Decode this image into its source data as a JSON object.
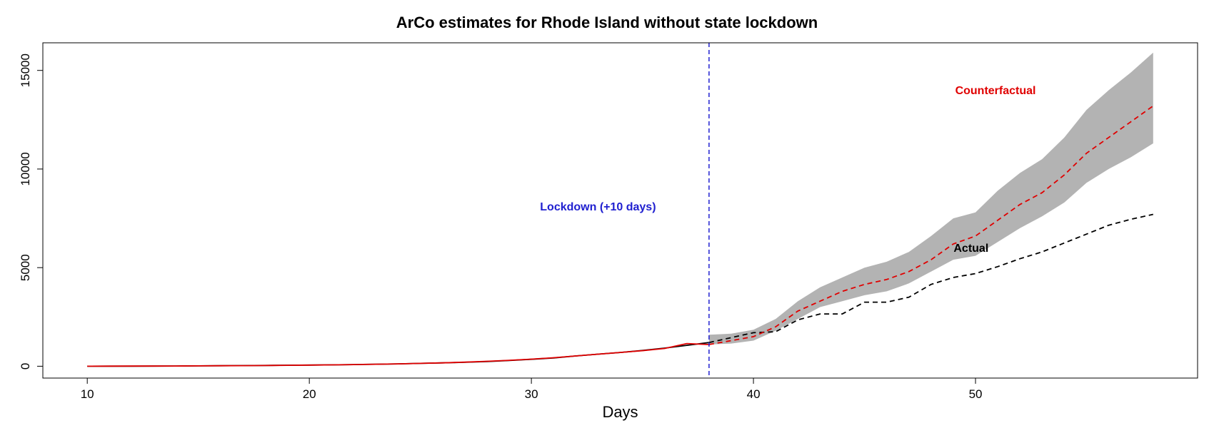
{
  "chart_data": {
    "type": "line",
    "title": "ArCo estimates for Rhode Island without state lockdown",
    "xlabel": "Days",
    "ylabel": "",
    "xlim": [
      8,
      60
    ],
    "ylim": [
      -600,
      16400
    ],
    "x_ticks": [
      10,
      20,
      30,
      40,
      50
    ],
    "y_ticks": [
      0,
      5000,
      10000,
      15000
    ],
    "grid": false,
    "legend": "none",
    "colors": {
      "actual": "#000000",
      "counterfactual": "#e00000",
      "band": "#b3b3b3",
      "lockdown": "#2020d0"
    },
    "series": [
      {
        "key": "actual_pre",
        "style": "solid",
        "x": [
          10,
          11,
          12,
          13,
          14,
          15,
          16,
          17,
          18,
          19,
          20,
          21,
          22,
          23,
          24,
          25,
          26,
          27,
          28,
          29,
          30,
          31,
          32,
          33,
          34,
          35,
          36,
          37,
          38
        ],
        "values": [
          2,
          3,
          5,
          8,
          12,
          18,
          25,
          32,
          40,
          50,
          60,
          70,
          85,
          100,
          120,
          145,
          170,
          200,
          240,
          290,
          350,
          420,
          520,
          610,
          700,
          800,
          920,
          1060,
          1200
        ]
      },
      {
        "key": "counterfactual_pre",
        "style": "solid",
        "x": [
          10,
          11,
          12,
          13,
          14,
          15,
          16,
          17,
          18,
          19,
          20,
          21,
          22,
          23,
          24,
          25,
          26,
          27,
          28,
          29,
          30,
          31,
          32,
          33,
          34,
          35,
          36,
          37,
          38
        ],
        "values": [
          2,
          4,
          6,
          8,
          12,
          17,
          24,
          30,
          38,
          48,
          58,
          70,
          85,
          100,
          120,
          145,
          170,
          205,
          250,
          300,
          360,
          430,
          520,
          610,
          700,
          790,
          900,
          1150,
          1100
        ]
      },
      {
        "key": "actual_post",
        "style": "dashed",
        "x": [
          38,
          39,
          40,
          41,
          42,
          43,
          44,
          45,
          46,
          47,
          48,
          49,
          50,
          51,
          52,
          53,
          54,
          55,
          56,
          57,
          58
        ],
        "values": [
          1200,
          1450,
          1700,
          1750,
          2350,
          2650,
          2650,
          3250,
          3250,
          3500,
          4150,
          4500,
          4700,
          5050,
          5450,
          5800,
          6250,
          6700,
          7150,
          7450,
          7700
        ]
      },
      {
        "key": "counterfactual_post",
        "style": "dashed",
        "x": [
          38,
          39,
          40,
          41,
          42,
          43,
          44,
          45,
          46,
          47,
          48,
          49,
          50,
          51,
          52,
          53,
          54,
          55,
          56,
          57,
          58
        ],
        "values": [
          1100,
          1300,
          1500,
          2000,
          2800,
          3300,
          3800,
          4150,
          4400,
          4800,
          5400,
          6200,
          6600,
          7400,
          8200,
          8800,
          9700,
          10800,
          11600,
          12400,
          13200
        ]
      }
    ],
    "band": {
      "x": [
        38,
        39,
        40,
        41,
        42,
        43,
        44,
        45,
        46,
        47,
        48,
        49,
        50,
        51,
        52,
        53,
        54,
        55,
        56,
        57,
        58
      ],
      "lower": [
        1100,
        1150,
        1300,
        1800,
        2400,
        3000,
        3300,
        3600,
        3800,
        4200,
        4800,
        5400,
        5600,
        6300,
        7000,
        7600,
        8300,
        9300,
        10000,
        10600,
        11300
      ],
      "upper": [
        1600,
        1650,
        1850,
        2400,
        3300,
        4000,
        4500,
        5000,
        5300,
        5800,
        6600,
        7500,
        7800,
        8900,
        9800,
        10500,
        11600,
        13000,
        14000,
        14900,
        15900
      ]
    },
    "lockdown_x": 38,
    "annotations": [
      {
        "key": "lockdown",
        "text": "Lockdown (+10 days)",
        "x": 33,
        "y": 7900
      },
      {
        "key": "counterfactual",
        "text": "Counterfactual",
        "x": 50.9,
        "y": 13800
      },
      {
        "key": "actual",
        "text": "Actual",
        "x": 49.8,
        "y": 5800
      }
    ]
  }
}
